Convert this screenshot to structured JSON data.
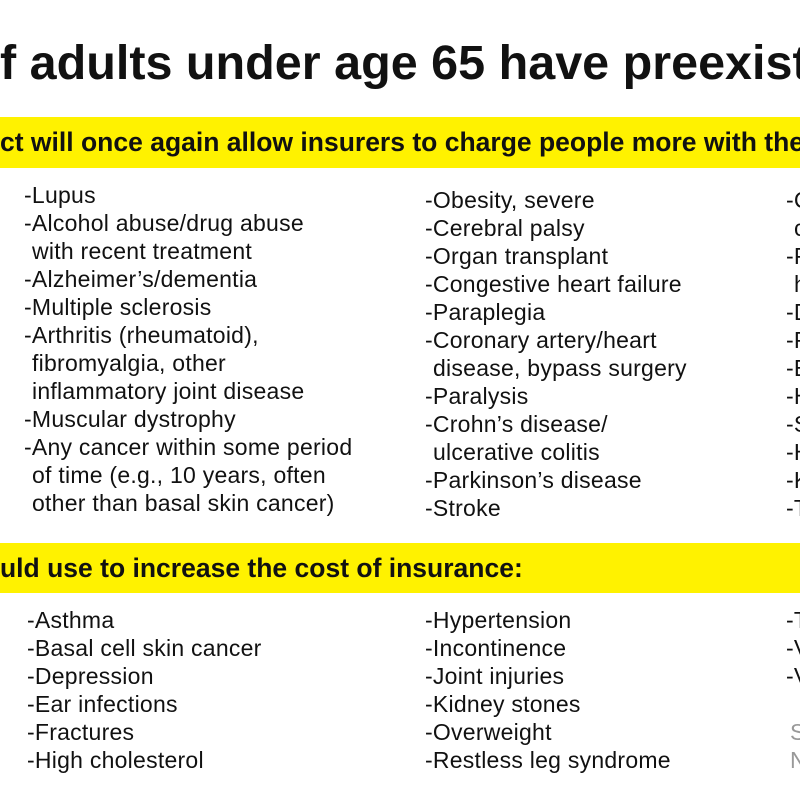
{
  "headline": "f adults under age 65 have preexist",
  "declinable_banner": "ct will once again allow insurers to charge people more with the",
  "declinable_conditions": {
    "col1": [
      "-Lupus",
      "-Alcohol abuse/drug abuse",
      "with recent treatment",
      "-Alzheimer’s/dementia",
      "-Multiple sclerosis",
      "-Arthritis (rheumatoid),",
      "fibromyalgia, other",
      "inflammatory joint disease",
      "-Muscular dystrophy",
      "-Any cancer within some period",
      "of time (e.g., 10 years, often",
      "other than basal skin cancer)"
    ],
    "col2": [
      "-Obesity, severe",
      "-Cerebral palsy",
      "-Organ transplant",
      "-Congestive heart failure",
      "-Paraplegia",
      "-Coronary artery/heart",
      "disease, bypass surgery",
      "-Paralysis",
      "-Crohn’s disease/",
      "ulcerative colitis",
      "-Parkinson’s disease",
      "-Stroke"
    ],
    "col3": [
      "-C",
      "c",
      "-P",
      "h",
      "-D",
      "-P",
      "-E",
      "-H",
      "-S",
      "-H",
      "-K",
      "-T"
    ]
  },
  "rating_banner": "uld use to increase the cost of insurance:",
  "rated_conditions": {
    "col1": [
      "-Asthma",
      "-Basal cell skin cancer",
      "-Depression",
      "-Ear infections",
      "-Fractures",
      "-High cholesterol"
    ],
    "col2": [
      "-Hypertension",
      "-Incontinence",
      "-Joint injuries",
      "-Kidney stones",
      "-Overweight",
      "-Restless leg syndrome"
    ],
    "col3": [
      "-T",
      "-V",
      "-V"
    ]
  },
  "footnote": {
    "source": "S",
    "note": "N"
  },
  "colors": {
    "highlight": "#FFF200",
    "text": "#111111",
    "footnote": "#999999"
  }
}
